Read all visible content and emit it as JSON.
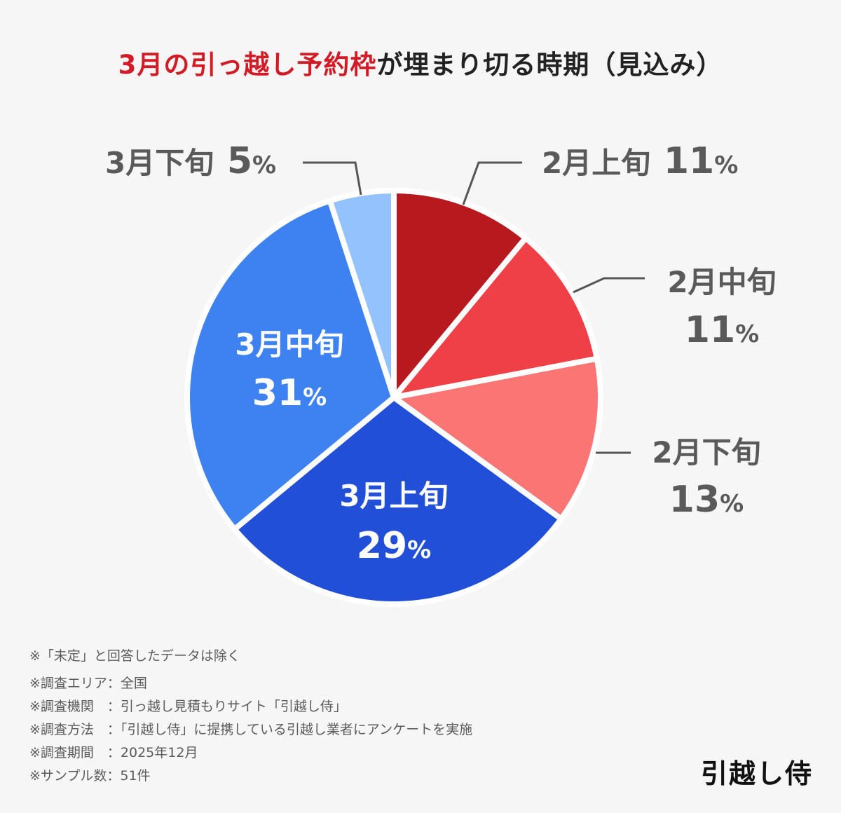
{
  "title": {
    "accent": "3月の引っ越し予約枠",
    "rest": "が埋まり切る時期（見込み）"
  },
  "colors": {
    "accent_red": "#d21b25",
    "label_gray": "#5a5a5a",
    "inside_label": "#ffffff"
  },
  "chart_data": {
    "type": "pie",
    "title": "3月の引っ越し予約枠が埋まり切る時期（見込み）",
    "unit": "%",
    "start": "12 o'clock, clockwise",
    "slices": [
      {
        "label": "2月上旬",
        "value": 11,
        "color": "#b8191f",
        "label_position": "outside"
      },
      {
        "label": "2月中旬",
        "value": 11,
        "color": "#ef4048",
        "label_position": "outside"
      },
      {
        "label": "2月下旬",
        "value": 13,
        "color": "#fb7575",
        "label_position": "outside"
      },
      {
        "label": "3月上旬",
        "value": 29,
        "color": "#214fd8",
        "label_position": "inside"
      },
      {
        "label": "3月中旬",
        "value": 31,
        "color": "#3d82f0",
        "label_position": "inside"
      },
      {
        "label": "3月下旬",
        "value": 5,
        "color": "#93c2fc",
        "label_position": "outside"
      }
    ]
  },
  "notes": [
    "※「未定」と回答したデータは除く",
    "※調査エリア：全国",
    "※調査機関　：引っ越し見積もりサイト「引越し侍」",
    "※調査方法　：「引越し侍」に提携している引越し業者にアンケートを実施",
    "※調査期間　：2025年12月",
    "※サンプル数：51件"
  ],
  "logo": "引越し侍"
}
